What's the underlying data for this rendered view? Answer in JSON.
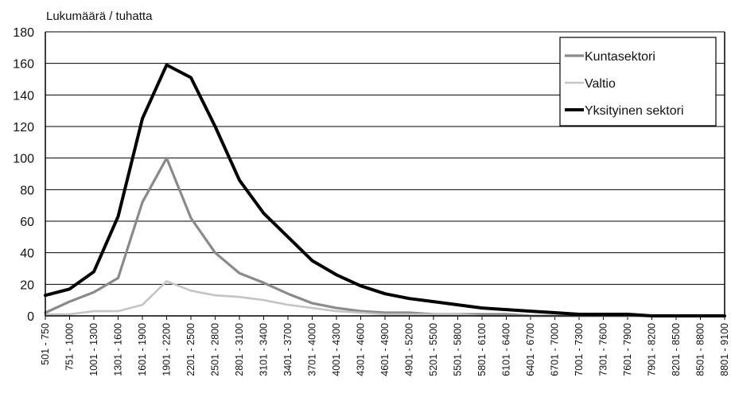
{
  "chart_data": {
    "type": "line",
    "ylabel": "Lukumäärä / tuhatta",
    "xlabel": "",
    "ylim": [
      0,
      180
    ],
    "yticks": [
      0,
      20,
      40,
      60,
      80,
      100,
      120,
      140,
      160,
      180
    ],
    "grid": true,
    "legend_position": "top-right",
    "categories": [
      "501 - 750",
      "751 - 1000",
      "1001 - 1300",
      "1301 - 1600",
      "1601 - 1900",
      "1901 - 2200",
      "2201 - 2500",
      "2501 - 2800",
      "2801 - 3100",
      "3101 - 3400",
      "3401 - 3700",
      "3701 - 4000",
      "4001 - 4300",
      "4301 - 4600",
      "4601 - 4900",
      "4901 - 5200",
      "5201 - 5500",
      "5501 - 5800",
      "5801 - 6100",
      "6101 - 6400",
      "6401 - 6700",
      "6701 - 7000",
      "7001 - 7300",
      "7301 - 7600",
      "7601 - 7900",
      "7901 - 8200",
      "8201 - 8500",
      "8501 - 8800",
      "8801 - 9100"
    ],
    "series": [
      {
        "name": "Kuntasektori",
        "color": "#8a8a8a",
        "values": [
          2,
          9,
          15,
          24,
          72,
          100,
          62,
          40,
          27,
          21,
          14,
          8,
          5,
          3,
          2,
          2,
          1,
          1,
          1,
          1,
          0,
          0,
          0,
          0,
          0,
          0,
          0,
          0,
          0
        ]
      },
      {
        "name": "Valtio",
        "color": "#c4c4c4",
        "values": [
          1,
          1,
          3,
          3,
          7,
          22,
          16,
          13,
          12,
          10,
          7,
          5,
          3,
          2,
          1,
          1,
          1,
          1,
          0,
          0,
          0,
          0,
          0,
          0,
          0,
          0,
          0,
          0,
          0
        ]
      },
      {
        "name": "Yksityinen sektori",
        "color": "#000000",
        "values": [
          13,
          17,
          28,
          63,
          125,
          159,
          151,
          120,
          86,
          65,
          50,
          35,
          26,
          19,
          14,
          11,
          9,
          7,
          5,
          4,
          3,
          2,
          1,
          1,
          1,
          0,
          0,
          0,
          0
        ]
      }
    ]
  }
}
